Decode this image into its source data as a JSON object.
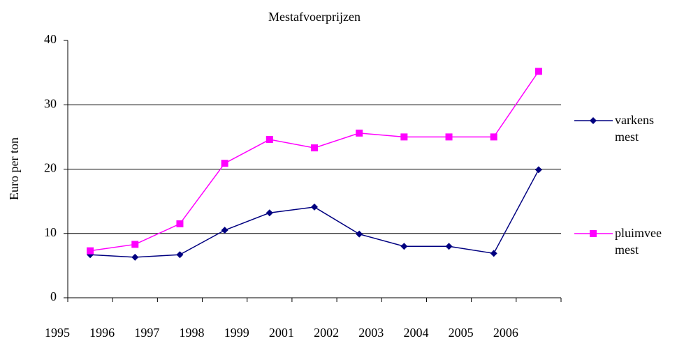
{
  "chart_data": {
    "type": "line",
    "title": "Mestafvoerprijzen",
    "y_label": "Euro per ton",
    "categories": [
      "1995",
      "1996",
      "1997",
      "1998",
      "1999",
      "2001",
      "2002",
      "2003",
      "2004",
      "2005",
      "2006"
    ],
    "series": [
      {
        "name": "varkens mest",
        "color": "#000080",
        "marker": "diamond",
        "values": [
          6.7,
          6.3,
          6.7,
          10.5,
          13.2,
          14.1,
          9.9,
          8.0,
          8.0,
          6.9,
          19.9
        ]
      },
      {
        "name": "pluimvee mest",
        "color": "#ff00ff",
        "marker": "square",
        "values": [
          7.3,
          8.3,
          11.5,
          20.9,
          24.6,
          23.3,
          25.6,
          25.0,
          25.0,
          25.0,
          35.2
        ]
      }
    ],
    "ylim": [
      0,
      40
    ],
    "yticks": [
      0,
      10,
      20,
      30,
      40
    ],
    "grid": true,
    "legend": "right"
  }
}
